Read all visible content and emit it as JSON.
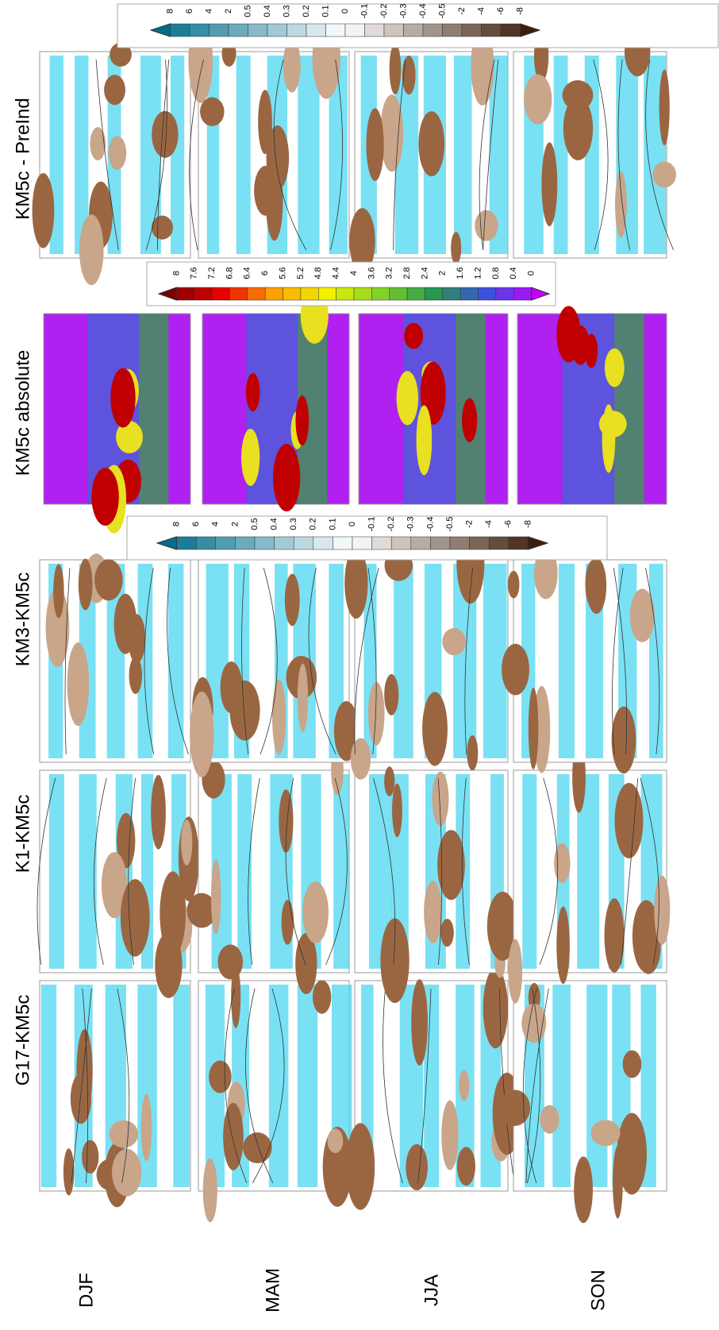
{
  "columns": [
    "G17-KM5c",
    "K1-KM5c",
    "KM3-KM5c",
    "KM5c absolute",
    "KM5c - PreInd"
  ],
  "rows": [
    "DJF",
    "MAM",
    "JJA",
    "SON"
  ],
  "colorbars": [
    {
      "labels": [
        "8",
        "6",
        "4",
        "2",
        "0.5",
        "0.4",
        "0.3",
        "0.2",
        "0.1",
        "0",
        "-0.1",
        "-0.2",
        "-0.3",
        "-0.4",
        "-0.5",
        "-2",
        "-4",
        "-6",
        "-8"
      ]
    },
    {
      "labels": [
        "8",
        "7.6",
        "7.2",
        "6.8",
        "6.4",
        "6",
        "5.6",
        "5.2",
        "4.8",
        "4.4",
        "4",
        "3.6",
        "3.2",
        "2.8",
        "2.4",
        "2",
        "1.6",
        "1.2",
        "0.8",
        "0.4",
        "0"
      ]
    },
    {
      "labels": [
        "8",
        "6",
        "4",
        "2",
        "0.5",
        "0.4",
        "0.3",
        "0.2",
        "0.1",
        "0",
        "-0.1",
        "-0.2",
        "-0.3",
        "-0.4",
        "-0.5",
        "-2",
        "-4",
        "-6",
        "-8"
      ]
    }
  ]
}
